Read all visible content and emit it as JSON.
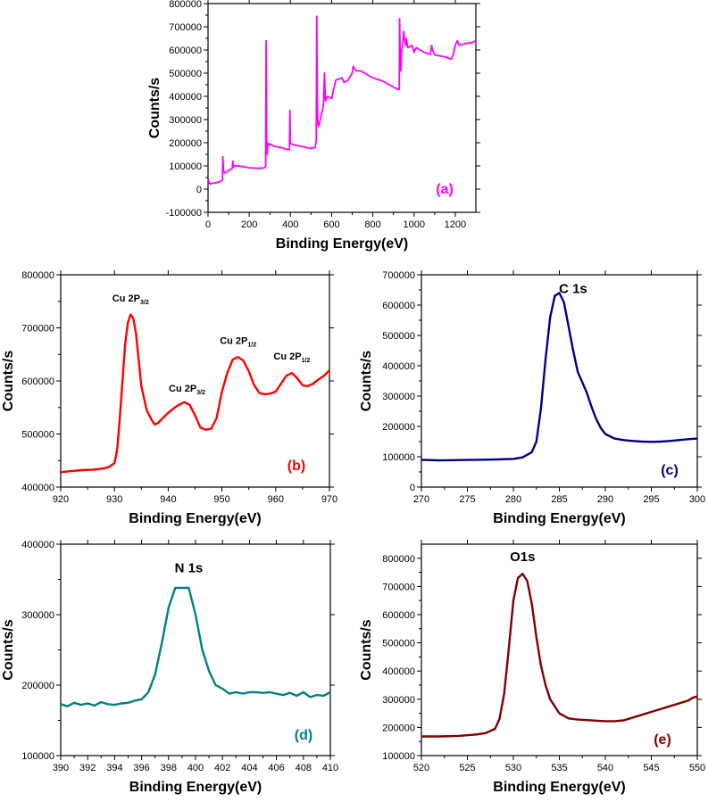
{
  "chart_data": [
    {
      "type": "line",
      "panel_label": "(a)",
      "color": "#ff00ff",
      "xlabel": "Binding Energy(eV)",
      "ylabel": "Counts/s",
      "xlim": [
        0,
        1300
      ],
      "ylim": [
        -100000,
        800000
      ],
      "xticks": [
        "0",
        "200",
        "400",
        "600",
        "800",
        "1000",
        "1200"
      ],
      "yticks": [
        "-100000",
        "0",
        "100000",
        "200000",
        "300000",
        "400000",
        "500000",
        "600000",
        "700000",
        "800000"
      ],
      "annotations": [],
      "series": [
        {
          "x": [
            0,
            5,
            10,
            20,
            40,
            60,
            70,
            72,
            75,
            80,
            90,
            100,
            110,
            118,
            120,
            125,
            130,
            150,
            200,
            250,
            275,
            280,
            282,
            284,
            285,
            287,
            290,
            295,
            300,
            320,
            350,
            380,
            395,
            398,
            400,
            405,
            420,
            450,
            500,
            520,
            525,
            528,
            530,
            532,
            535,
            540,
            560,
            565,
            568,
            570,
            580,
            600,
            620,
            650,
            660,
            680,
            700,
            705,
            710,
            720,
            740,
            760,
            780,
            800,
            850,
            900,
            920,
            928,
            930,
            933,
            936,
            940,
            945,
            950,
            953,
            956,
            960,
            963,
            966,
            970,
            990,
            1000,
            1010,
            1050,
            1080,
            1085,
            1090,
            1100,
            1120,
            1150,
            1180,
            1190,
            1200,
            1210,
            1220,
            1240,
            1260,
            1280,
            1300
          ],
          "y": [
            45000,
            30000,
            22000,
            25000,
            28000,
            32000,
            40000,
            140000,
            80000,
            70000,
            75000,
            80000,
            85000,
            90000,
            120000,
            95000,
            100000,
            100000,
            92000,
            90000,
            92000,
            100000,
            640000,
            250000,
            160000,
            150000,
            200000,
            190000,
            195000,
            185000,
            180000,
            172000,
            170000,
            340000,
            200000,
            195000,
            190000,
            185000,
            175000,
            180000,
            210000,
            745000,
            420000,
            300000,
            270000,
            280000,
            360000,
            500000,
            420000,
            380000,
            400000,
            390000,
            470000,
            480000,
            460000,
            470000,
            500000,
            530000,
            520000,
            510000,
            510000,
            500000,
            490000,
            480000,
            465000,
            440000,
            430000,
            430000,
            735000,
            560000,
            510000,
            600000,
            620000,
            680000,
            650000,
            640000,
            620000,
            650000,
            630000,
            610000,
            620000,
            590000,
            610000,
            590000,
            580000,
            620000,
            600000,
            580000,
            575000,
            570000,
            560000,
            580000,
            620000,
            640000,
            620000,
            625000,
            630000,
            630000,
            640000
          ]
        }
      ]
    },
    {
      "type": "line",
      "panel_label": "(b)",
      "color": "#ff0000",
      "xlabel": "Binding Energy(eV)",
      "ylabel": "Counts/s",
      "xlim": [
        920,
        970
      ],
      "ylim": [
        400000,
        800000
      ],
      "xticks": [
        "920",
        "930",
        "940",
        "950",
        "960",
        "970"
      ],
      "yticks": [
        "400000",
        "500000",
        "600000",
        "700000",
        "800000"
      ],
      "annotations": [
        {
          "base": "Cu 2P",
          "sub": "3/2",
          "x": 933,
          "y": 750000
        },
        {
          "base": "Cu 2P",
          "sub": "3/2",
          "x": 943.5,
          "y": 580000
        },
        {
          "base": "Cu 2P",
          "sub": "1/2",
          "x": 953,
          "y": 670000
        },
        {
          "base": "Cu 2P",
          "sub": "1/2",
          "x": 963,
          "y": 640000
        }
      ],
      "series": [
        {
          "x": [
            920,
            922,
            924,
            926,
            928,
            929,
            930,
            930.5,
            931,
            931.5,
            932,
            932.5,
            933,
            933.5,
            934,
            934.5,
            935,
            936,
            937,
            937.5,
            938,
            939,
            940,
            941,
            942,
            943,
            944,
            945,
            946,
            947,
            948,
            949,
            950,
            951,
            952,
            953,
            954,
            955,
            956,
            957,
            958,
            959,
            960,
            961,
            962,
            963,
            964,
            965,
            966,
            967,
            968,
            969,
            970
          ],
          "y": [
            428000,
            430000,
            432000,
            433000,
            435000,
            438000,
            445000,
            470000,
            530000,
            600000,
            670000,
            710000,
            725000,
            718000,
            690000,
            640000,
            590000,
            545000,
            525000,
            518000,
            520000,
            530000,
            540000,
            548000,
            555000,
            560000,
            555000,
            535000,
            512000,
            508000,
            510000,
            530000,
            580000,
            615000,
            640000,
            645000,
            638000,
            618000,
            592000,
            577000,
            575000,
            576000,
            580000,
            595000,
            610000,
            615000,
            605000,
            592000,
            590000,
            595000,
            603000,
            610000,
            620000
          ]
        }
      ]
    },
    {
      "type": "line",
      "panel_label": "(c)",
      "color": "#000080",
      "xlabel": "Binding Energy(eV)",
      "ylabel": "Counts/s",
      "xlim": [
        270,
        300
      ],
      "ylim": [
        0,
        700000
      ],
      "xticks": [
        "270",
        "275",
        "280",
        "285",
        "290",
        "295",
        "300"
      ],
      "yticks": [
        "0",
        "100000",
        "200000",
        "300000",
        "400000",
        "500000",
        "600000",
        "700000"
      ],
      "annotations": [
        {
          "text": "C 1s",
          "x": 286.5,
          "y": 640000
        }
      ],
      "series": [
        {
          "x": [
            270,
            272,
            274,
            276,
            278,
            280,
            281,
            282,
            282.5,
            283,
            283.5,
            284,
            284.5,
            285,
            285.5,
            286,
            286.5,
            287,
            287.5,
            288,
            288.5,
            289,
            289.5,
            290,
            291,
            292,
            293,
            294,
            295,
            296,
            297,
            298,
            299,
            300
          ],
          "y": [
            90000,
            88000,
            89000,
            90000,
            91000,
            93000,
            98000,
            115000,
            150000,
            260000,
            420000,
            560000,
            630000,
            640000,
            610000,
            530000,
            450000,
            380000,
            345000,
            310000,
            265000,
            225000,
            195000,
            175000,
            160000,
            155000,
            152000,
            150000,
            149000,
            150000,
            152000,
            155000,
            158000,
            160000
          ]
        }
      ]
    },
    {
      "type": "line",
      "panel_label": "(d)",
      "color": "#008080",
      "xlabel": "Binding Energy(eV)",
      "ylabel": "Counts/s",
      "xlim": [
        390,
        410
      ],
      "ylim": [
        100000,
        400000
      ],
      "xticks": [
        "390",
        "392",
        "394",
        "396",
        "398",
        "400",
        "402",
        "404",
        "406",
        "408",
        "410"
      ],
      "yticks": [
        "100000",
        "200000",
        "300000",
        "400000"
      ],
      "annotations": [
        {
          "text": "N 1s",
          "x": 399.5,
          "y": 360000
        }
      ],
      "series": [
        {
          "x": [
            390,
            390.5,
            391,
            391.5,
            392,
            392.5,
            393,
            393.5,
            394,
            394.5,
            395,
            395.5,
            396,
            396.5,
            397,
            397.5,
            398,
            398.5,
            399,
            399.5,
            400,
            400.5,
            401,
            401.5,
            402,
            402.5,
            403,
            403.5,
            404,
            404.5,
            405,
            405.5,
            406,
            406.5,
            407,
            407.5,
            408,
            408.5,
            409,
            409.5,
            410
          ],
          "y": [
            173000,
            170000,
            175000,
            172000,
            174000,
            171000,
            176000,
            173000,
            172000,
            174000,
            175000,
            178000,
            180000,
            190000,
            215000,
            260000,
            310000,
            338000,
            338000,
            338000,
            300000,
            250000,
            220000,
            200000,
            195000,
            188000,
            190000,
            188000,
            190000,
            190000,
            189000,
            190000,
            188000,
            186000,
            189000,
            185000,
            190000,
            183000,
            186000,
            185000,
            190000
          ]
        }
      ]
    },
    {
      "type": "line",
      "panel_label": "(e)",
      "color": "#800000",
      "xlabel": "Binding Energy(eV)",
      "ylabel": "Counts/s",
      "xlim": [
        520,
        550
      ],
      "ylim": [
        100000,
        850000
      ],
      "xticks": [
        "520",
        "525",
        "530",
        "535",
        "540",
        "545",
        "550"
      ],
      "yticks": [
        "100000",
        "200000",
        "300000",
        "400000",
        "500000",
        "600000",
        "700000",
        "800000"
      ],
      "annotations": [
        {
          "text": "O1s",
          "x": 531,
          "y": 790000
        }
      ],
      "series": [
        {
          "x": [
            520,
            522,
            524,
            526,
            527,
            528,
            528.5,
            529,
            529.5,
            530,
            530.5,
            531,
            531.5,
            532,
            532.5,
            533,
            533.5,
            534,
            535,
            536,
            537,
            538,
            539,
            540,
            541,
            542,
            543,
            544,
            545,
            546,
            547,
            548,
            549,
            549.5,
            550
          ],
          "y": [
            168000,
            168000,
            170000,
            175000,
            180000,
            195000,
            230000,
            320000,
            480000,
            650000,
            730000,
            745000,
            720000,
            640000,
            520000,
            420000,
            350000,
            300000,
            250000,
            232000,
            228000,
            226000,
            224000,
            222000,
            222000,
            225000,
            235000,
            245000,
            255000,
            265000,
            275000,
            285000,
            295000,
            305000,
            310000
          ]
        }
      ]
    }
  ]
}
